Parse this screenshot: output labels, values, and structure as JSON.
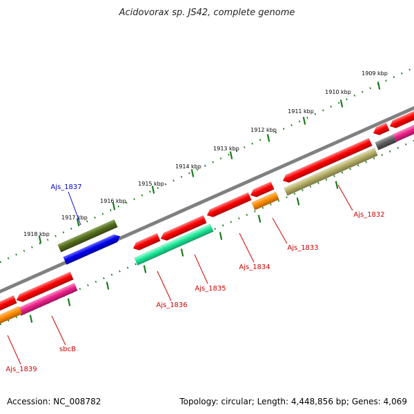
{
  "title": "Acidovorax sp. JS42, complete genome",
  "footer": {
    "accession": "Accession: NC_008782",
    "summary": "Topology: circular; Length: 4,448,856 bp; Genes: 4,069"
  },
  "tick_labels": [
    "1909 kbp",
    "1910 kbp",
    "1911 kbp",
    "1912 kbp",
    "1913 kbp",
    "1914 kbp",
    "1915 kbp",
    "1916 kbp",
    "1917 kbp",
    "1918 kbp"
  ],
  "gene_labels": [
    "Ajs_1837",
    "Ajs_1832",
    "Ajs_1833",
    "Ajs_1834",
    "Ajs_1835",
    "Ajs_1836",
    "sbcB",
    "Ajs_1839"
  ],
  "colors": {
    "backbone": "#808080",
    "tick": "#1a7a1a",
    "label_red": "#cc0000",
    "label_blue": "#0000cc",
    "red": "#ff0000",
    "magenta": "#ee2288",
    "orange": "#ff8c00",
    "olive": "#556b1f",
    "blue": "#0000ee",
    "aqua": "#1ee89a",
    "khaki": "#b3ad68",
    "gray": "#606060"
  }
}
